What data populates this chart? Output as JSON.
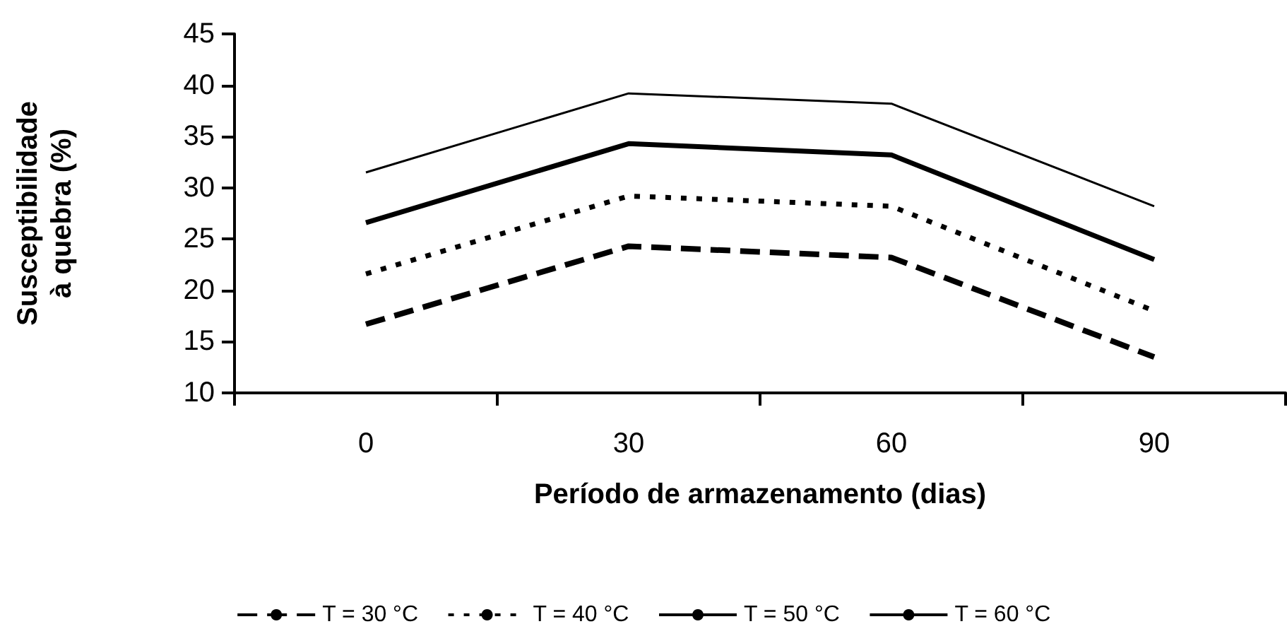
{
  "chart_data": {
    "type": "line",
    "xlabel": "Período de armazenamento (dias)",
    "ylabel": "Susceptibilidade à quebra (%)",
    "categories": [
      "0",
      "30",
      "60",
      "90"
    ],
    "ylim": [
      10,
      45
    ],
    "yticks": [
      10,
      15,
      20,
      25,
      30,
      35,
      40,
      45
    ],
    "grid": false,
    "legend": "bottom",
    "marker": "none",
    "series": [
      {
        "name": "T = 30 °C",
        "color": "#000000",
        "line_style": "dashed",
        "values": [
          16.7,
          24.3,
          23.2,
          13.5
        ]
      },
      {
        "name": "T = 40 °C",
        "color": "#000000",
        "line_style": "dotted",
        "values": [
          21.6,
          29.2,
          28.2,
          18.0
        ]
      },
      {
        "name": "T = 50 °C",
        "color": "#000000",
        "line_style": "solid",
        "values": [
          26.6,
          34.3,
          33.2,
          23.0
        ]
      },
      {
        "name": "T = 60 °C",
        "color": "#000000",
        "line_style": "solid",
        "values": [
          31.5,
          39.2,
          38.2,
          28.2
        ]
      }
    ]
  }
}
